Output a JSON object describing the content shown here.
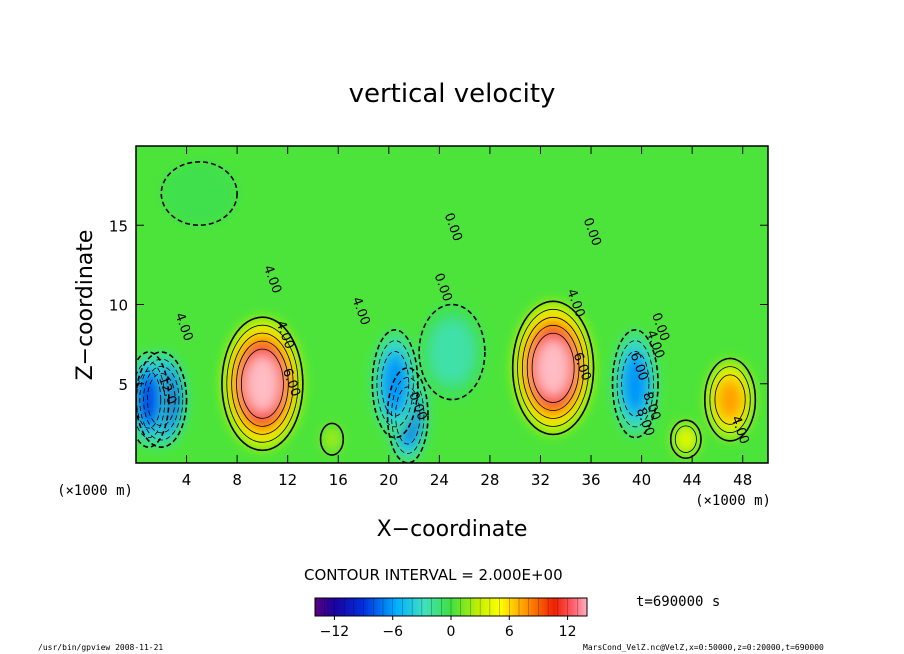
{
  "chart_data": {
    "type": "heatmap",
    "title": "vertical velocity",
    "xlabel": "X−coordinate",
    "ylabel": "Z−coordinate",
    "x_unit": "(×1000 m)",
    "z_unit": "(×1000 m)",
    "xlim": [
      0,
      50
    ],
    "ylim": [
      0,
      20
    ],
    "x_ticks": [
      4,
      8,
      12,
      16,
      20,
      24,
      28,
      32,
      36,
      40,
      44,
      48
    ],
    "y_ticks": [
      5,
      10,
      15
    ],
    "contour_interval": "CONTOUR INTERVAL = 2.000E+00",
    "contour_labels": [
      "4.00",
      "4.00",
      "6.00",
      "12.0",
      "4.00",
      "0.00",
      "0.00",
      "0.00",
      "4.00",
      "6.00",
      "0.00",
      "4.00",
      "6.00",
      "8.00",
      "0.00",
      "4.00",
      "8.00",
      "4.00"
    ],
    "colorbar": {
      "ticks": [
        -12,
        -6,
        0,
        6,
        12
      ],
      "range": [
        -14,
        14
      ]
    },
    "cells": [
      {
        "x": 2,
        "z": 4,
        "w": -13
      },
      {
        "x": 1,
        "z": 4,
        "w": -10
      },
      {
        "x": 10,
        "z": 5,
        "w": 15
      },
      {
        "x": 21.5,
        "z": 3,
        "w": -10
      },
      {
        "x": 20.5,
        "z": 5,
        "w": -8
      },
      {
        "x": 25,
        "z": 7,
        "w": -4
      },
      {
        "x": 33,
        "z": 6,
        "w": 15
      },
      {
        "x": 39.5,
        "z": 5,
        "w": -8
      },
      {
        "x": 47,
        "z": 4,
        "w": 9
      },
      {
        "x": 43.5,
        "z": 1.5,
        "w": 6
      },
      {
        "x": 15.5,
        "z": 1.5,
        "w": 4
      },
      {
        "x": 5,
        "z": 17,
        "w": -2
      }
    ]
  },
  "time": "t=690000 s",
  "footer": {
    "left": "/usr/bin/gpview   2008-11-21",
    "right": "MarsCond_VelZ.nc@VelZ,x=0:50000,z=0:20000,t=690000"
  }
}
